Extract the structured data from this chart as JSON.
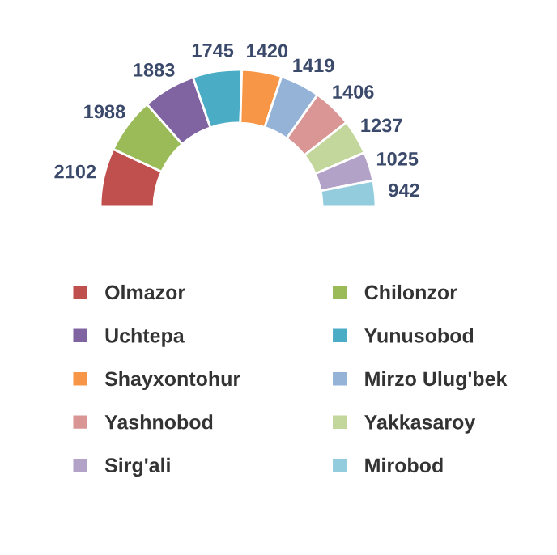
{
  "chart_data": {
    "type": "donut",
    "categories": [
      "Olmazor",
      "Chilonzor",
      "Uchtepa",
      "Yunusobod",
      "Shayxontohur",
      "Mirzo Ulug'bek",
      "Yashnobod",
      "Yakkasaroy",
      "Sirg'ali",
      "Mirobod"
    ],
    "values": [
      2102,
      1988,
      1883,
      1745,
      1420,
      1419,
      1406,
      1237,
      1025,
      942
    ],
    "colors": [
      "#c0504d",
      "#9bbb59",
      "#8064a2",
      "#4bacc6",
      "#f79646",
      "#95b3d7",
      "#d99694",
      "#c3d69b",
      "#b3a2c7",
      "#93cddd"
    ],
    "data_labels": true,
    "legend": "bottom"
  }
}
